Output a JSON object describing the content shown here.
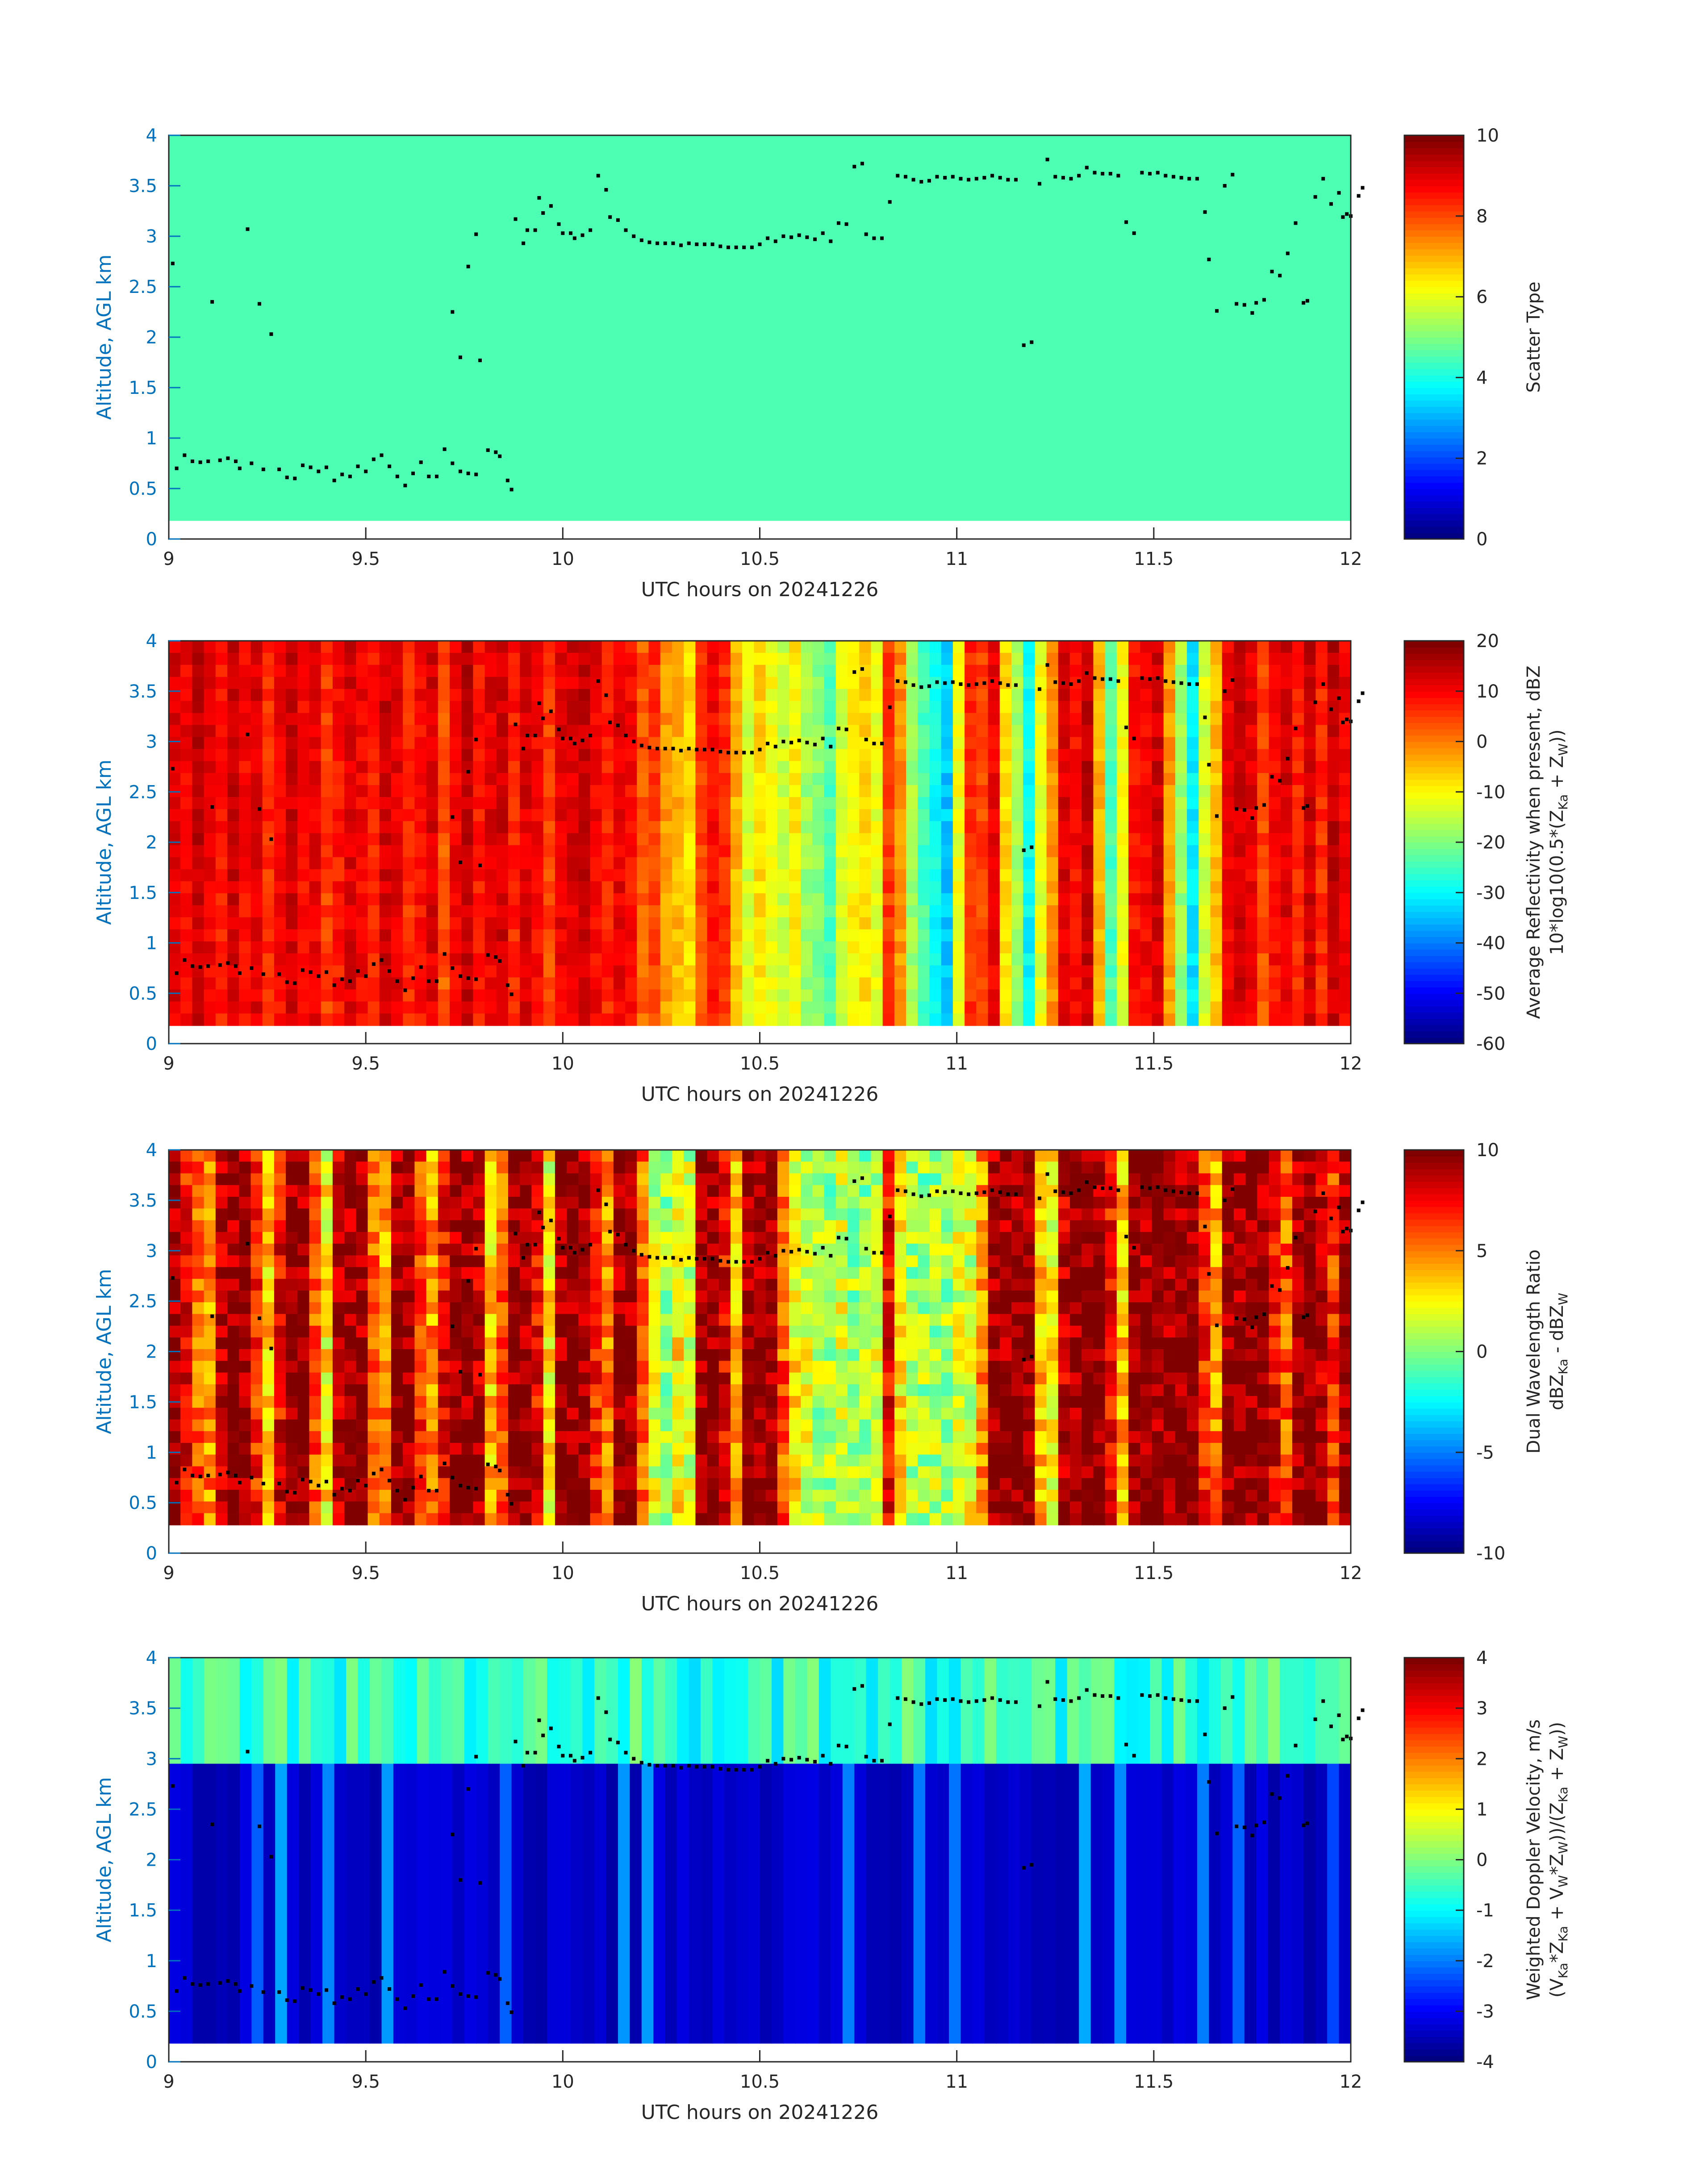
{
  "figure": {
    "xlabel": "UTC hours on 20241226",
    "ylabel": "Altitude, AGL km",
    "xlim": [
      9,
      12
    ],
    "ylim": [
      0,
      4
    ],
    "x_ticks": [
      "9",
      "9.5",
      "10",
      "10.5",
      "11",
      "11.5",
      "12"
    ],
    "y_ticks": [
      "0",
      "0.5",
      "1",
      "1.5",
      "2",
      "2.5",
      "3",
      "3.5",
      "4"
    ],
    "colormap": "jet",
    "axis_tick_color": "#0072BD",
    "marker_color": "#000000",
    "background_fill_uniform": "#1cffda"
  },
  "panels": [
    {
      "id": "scatter-type",
      "colorbar_label_line1": "",
      "colorbar_label_line2": "Scatter Type",
      "clim": [
        0,
        10
      ],
      "colorbar_ticks": [
        "0",
        "2",
        "4",
        "6",
        "8",
        "10"
      ]
    },
    {
      "id": "reflectivity",
      "colorbar_label_line1": "Average Reflectivity when present, dBZ",
      "colorbar_label_line2": "10*log10(0.5*(Z",
      "colorbar_label_line2_parts": [
        "10*log10(0.5*(Z",
        "Ka",
        " + Z",
        "W",
        "))"
      ],
      "clim": [
        -60,
        20
      ],
      "colorbar_ticks": [
        "-60",
        "-50",
        "-40",
        "-30",
        "-20",
        "-10",
        "0",
        "10",
        "20"
      ]
    },
    {
      "id": "dwr",
      "colorbar_label_line1": "Dual Wavelength Ratio",
      "colorbar_label_line2": "dBZ",
      "colorbar_label_line2_parts": [
        "dBZ",
        "Ka",
        " - dBZ",
        "W",
        ""
      ],
      "clim": [
        -10,
        10
      ],
      "colorbar_ticks": [
        "-10",
        "-5",
        "0",
        "5",
        "10"
      ]
    },
    {
      "id": "doppler",
      "colorbar_label_line1": "Weighted Doppler Velocity, m/s",
      "colorbar_label_line2": "(V",
      "colorbar_label_line2_parts": [
        "(V",
        "Ka",
        "*Z",
        "Ka",
        " + V",
        "W",
        "*Z",
        "W",
        "))/(Z",
        "Ka",
        " + Z",
        "W",
        "))"
      ],
      "clim": [
        -4,
        4
      ],
      "colorbar_ticks": [
        "-4",
        "-3",
        "-2",
        "-1",
        "0",
        "1",
        "2",
        "3",
        "4"
      ]
    }
  ],
  "chart_data": [
    {
      "type": "heatmap",
      "name": "Scatter Type",
      "xlabel": "UTC hours on 20241226",
      "ylabel": "Altitude, AGL km",
      "xlim": [
        9,
        12
      ],
      "ylim": [
        0,
        4
      ],
      "clim": [
        0,
        10
      ],
      "data_bottom_km": 0.18,
      "uniform_value": 4.5,
      "overlay_points": [
        [
          9.01,
          2.73
        ],
        [
          9.02,
          0.7
        ],
        [
          9.04,
          0.83
        ],
        [
          9.06,
          0.77
        ],
        [
          9.08,
          0.76
        ],
        [
          9.1,
          0.77
        ],
        [
          9.11,
          2.35
        ],
        [
          9.13,
          0.78
        ],
        [
          9.15,
          0.8
        ],
        [
          9.17,
          0.77
        ],
        [
          9.18,
          0.7
        ],
        [
          9.2,
          3.07
        ],
        [
          9.21,
          0.75
        ],
        [
          9.23,
          2.33
        ],
        [
          9.24,
          0.69
        ],
        [
          9.26,
          2.03
        ],
        [
          9.28,
          0.69
        ],
        [
          9.3,
          0.61
        ],
        [
          9.32,
          0.6
        ],
        [
          9.34,
          0.73
        ],
        [
          9.36,
          0.71
        ],
        [
          9.38,
          0.67
        ],
        [
          9.4,
          0.71
        ],
        [
          9.42,
          0.58
        ],
        [
          9.44,
          0.64
        ],
        [
          9.46,
          0.62
        ],
        [
          9.48,
          0.72
        ],
        [
          9.5,
          0.67
        ],
        [
          9.52,
          0.79
        ],
        [
          9.54,
          0.83
        ],
        [
          9.56,
          0.72
        ],
        [
          9.58,
          0.62
        ],
        [
          9.6,
          0.53
        ],
        [
          9.62,
          0.65
        ],
        [
          9.64,
          0.76
        ],
        [
          9.66,
          0.62
        ],
        [
          9.68,
          0.62
        ],
        [
          9.7,
          0.89
        ],
        [
          9.72,
          0.75
        ],
        [
          9.74,
          0.67
        ],
        [
          9.76,
          0.65
        ],
        [
          9.78,
          0.64
        ],
        [
          9.72,
          2.25
        ],
        [
          9.74,
          1.8
        ],
        [
          9.76,
          2.7
        ],
        [
          9.78,
          3.02
        ],
        [
          9.79,
          1.77
        ],
        [
          9.81,
          0.88
        ],
        [
          9.83,
          0.86
        ],
        [
          9.84,
          0.82
        ],
        [
          9.86,
          0.58
        ],
        [
          9.87,
          0.49
        ],
        [
          9.88,
          3.17
        ],
        [
          9.9,
          2.93
        ],
        [
          9.91,
          3.06
        ],
        [
          9.93,
          3.06
        ],
        [
          9.94,
          3.38
        ],
        [
          9.95,
          3.23
        ],
        [
          9.97,
          3.3
        ],
        [
          9.99,
          3.12
        ],
        [
          10.0,
          3.03
        ],
        [
          10.02,
          3.03
        ],
        [
          10.03,
          2.98
        ],
        [
          10.05,
          3.01
        ],
        [
          10.07,
          3.06
        ],
        [
          10.09,
          3.6
        ],
        [
          10.11,
          3.46
        ],
        [
          10.12,
          3.19
        ],
        [
          10.14,
          3.16
        ],
        [
          10.16,
          3.06
        ],
        [
          10.18,
          3.0
        ],
        [
          10.2,
          2.96
        ],
        [
          10.22,
          2.94
        ],
        [
          10.24,
          2.93
        ],
        [
          10.26,
          2.93
        ],
        [
          10.28,
          2.93
        ],
        [
          10.3,
          2.91
        ],
        [
          10.32,
          2.93
        ],
        [
          10.34,
          2.92
        ],
        [
          10.36,
          2.92
        ],
        [
          10.38,
          2.92
        ],
        [
          10.4,
          2.9
        ],
        [
          10.42,
          2.89
        ],
        [
          10.44,
          2.89
        ],
        [
          10.46,
          2.89
        ],
        [
          10.48,
          2.89
        ],
        [
          10.5,
          2.92
        ],
        [
          10.52,
          2.98
        ],
        [
          10.54,
          2.95
        ],
        [
          10.56,
          3.0
        ],
        [
          10.58,
          2.99
        ],
        [
          10.6,
          3.01
        ],
        [
          10.62,
          2.99
        ],
        [
          10.64,
          2.97
        ],
        [
          10.66,
          3.03
        ],
        [
          10.68,
          2.95
        ],
        [
          10.7,
          3.13
        ],
        [
          10.72,
          3.12
        ],
        [
          10.74,
          3.69
        ],
        [
          10.76,
          3.72
        ],
        [
          10.77,
          3.02
        ],
        [
          10.79,
          2.98
        ],
        [
          10.81,
          2.98
        ],
        [
          10.83,
          3.34
        ],
        [
          10.85,
          3.6
        ],
        [
          10.87,
          3.59
        ],
        [
          10.89,
          3.56
        ],
        [
          10.91,
          3.54
        ],
        [
          10.93,
          3.55
        ],
        [
          10.95,
          3.59
        ],
        [
          10.97,
          3.58
        ],
        [
          10.99,
          3.59
        ],
        [
          11.01,
          3.57
        ],
        [
          11.03,
          3.56
        ],
        [
          11.05,
          3.57
        ],
        [
          11.07,
          3.58
        ],
        [
          11.09,
          3.6
        ],
        [
          11.11,
          3.58
        ],
        [
          11.13,
          3.56
        ],
        [
          11.15,
          3.56
        ],
        [
          11.17,
          1.92
        ],
        [
          11.19,
          1.95
        ],
        [
          11.21,
          3.52
        ],
        [
          11.23,
          3.76
        ],
        [
          11.25,
          3.59
        ],
        [
          11.27,
          3.58
        ],
        [
          11.29,
          3.57
        ],
        [
          11.31,
          3.6
        ],
        [
          11.33,
          3.68
        ],
        [
          11.35,
          3.63
        ],
        [
          11.37,
          3.62
        ],
        [
          11.39,
          3.62
        ],
        [
          11.41,
          3.6
        ],
        [
          11.43,
          3.14
        ],
        [
          11.45,
          3.03
        ],
        [
          11.47,
          3.63
        ],
        [
          11.49,
          3.62
        ],
        [
          11.51,
          3.63
        ],
        [
          11.53,
          3.6
        ],
        [
          11.55,
          3.59
        ],
        [
          11.57,
          3.58
        ],
        [
          11.59,
          3.57
        ],
        [
          11.61,
          3.57
        ],
        [
          11.63,
          3.24
        ],
        [
          11.64,
          2.77
        ],
        [
          11.66,
          2.26
        ],
        [
          11.68,
          3.5
        ],
        [
          11.7,
          3.61
        ],
        [
          11.71,
          2.33
        ],
        [
          11.73,
          2.32
        ],
        [
          11.75,
          2.24
        ],
        [
          11.76,
          2.34
        ],
        [
          11.78,
          2.37
        ],
        [
          11.8,
          2.65
        ],
        [
          11.82,
          2.61
        ],
        [
          11.84,
          2.83
        ],
        [
          11.86,
          3.13
        ],
        [
          11.88,
          2.34
        ],
        [
          11.89,
          2.36
        ],
        [
          11.91,
          3.39
        ],
        [
          11.93,
          3.57
        ],
        [
          11.95,
          3.32
        ],
        [
          11.97,
          3.43
        ],
        [
          11.98,
          3.19
        ],
        [
          12.0,
          3.2
        ],
        [
          11.99,
          3.22
        ],
        [
          12.02,
          3.4
        ],
        [
          12.03,
          3.48
        ]
      ]
    },
    {
      "type": "heatmap",
      "name": "Average Reflectivity when present, dBZ",
      "xlabel": "UTC hours on 20241226",
      "ylabel": "Altitude, AGL km",
      "xlim": [
        9,
        12
      ],
      "ylim": [
        0,
        4
      ],
      "clim": [
        -60,
        20
      ],
      "data_bottom_km": 0.18,
      "column_values_dBZ": [
        12,
        10,
        14,
        11,
        8,
        13,
        9,
        12,
        6,
        10,
        13,
        9,
        11,
        5,
        8,
        12,
        10,
        7,
        13,
        11,
        6,
        9,
        12,
        3,
        10,
        14,
        8,
        11,
        13,
        7,
        12,
        9,
        4,
        11,
        12,
        14,
        10,
        7,
        11,
        9,
        2,
        5,
        -3,
        -5,
        -8,
        4,
        9,
        6,
        -5,
        -14,
        -8,
        -12,
        -15,
        -10,
        -18,
        -20,
        -24,
        -14,
        -10,
        -8,
        -12,
        5,
        -2,
        -18,
        -25,
        -30,
        -35,
        -12,
        6,
        4,
        10,
        -8,
        -18,
        -30,
        -12,
        -2,
        12,
        9,
        14,
        -5,
        -24,
        -12,
        8,
        10,
        13,
        -3,
        -18,
        -32,
        -14,
        -6,
        10,
        13,
        11,
        4,
        9,
        12,
        7,
        13,
        6,
        14,
        10
      ]
    },
    {
      "type": "heatmap",
      "name": "Dual Wavelength Ratio",
      "xlabel": "UTC hours on 20241226",
      "ylabel": "Altitude, AGL km",
      "xlim": [
        9,
        12
      ],
      "ylim": [
        0,
        4
      ],
      "clim": [
        -10,
        10
      ],
      "data_bottom_km": 0.28,
      "column_values_dB": [
        10,
        8,
        6,
        5,
        9,
        10,
        10,
        7,
        4,
        8,
        10,
        10,
        6,
        3,
        9,
        10,
        10,
        6,
        5,
        10,
        10,
        7,
        5,
        8,
        10,
        10,
        9,
        4,
        6,
        10,
        10,
        8,
        3,
        10,
        10,
        10,
        7,
        5,
        10,
        10,
        6,
        2,
        1,
        3,
        2,
        10,
        10,
        8,
        4,
        10,
        10,
        10,
        6,
        3,
        2,
        1,
        1,
        2,
        1,
        1,
        2,
        8,
        3,
        1,
        1,
        1,
        1,
        2,
        2,
        5,
        10,
        10,
        10,
        10,
        4,
        3,
        9,
        10,
        10,
        10,
        8,
        4,
        10,
        10,
        10,
        10,
        10,
        10,
        7,
        5,
        10,
        10,
        10,
        10,
        8,
        6,
        10,
        10,
        9,
        7,
        10
      ]
    },
    {
      "type": "heatmap",
      "name": "Weighted Doppler Velocity, m/s",
      "xlabel": "UTC hours on 20241226",
      "ylabel": "Altitude, AGL km",
      "xlim": [
        9,
        12
      ],
      "ylim": [
        0,
        4
      ],
      "clim": [
        -4,
        4
      ],
      "data_bottom_km": 0.18,
      "upper_layer_km": [
        2.95,
        4.0
      ],
      "upper_layer_value_ms": -0.6,
      "lower_layer_value_ms": -3.7
    }
  ]
}
